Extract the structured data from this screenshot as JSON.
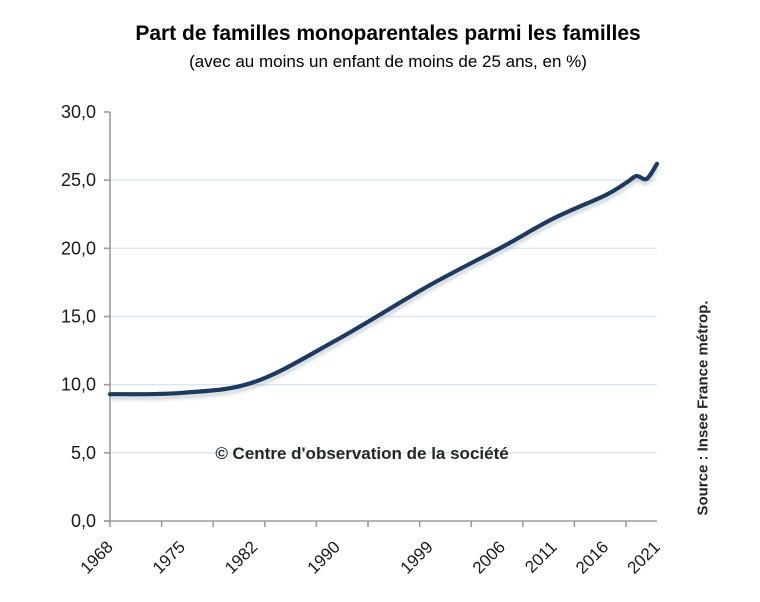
{
  "header": {
    "title": "Part de familles monoparentales parmi les familles",
    "subtitle": "(avec au moins un enfant de moins de 25 ans, en %)"
  },
  "watermark": "© Centre d'observation de la société",
  "source_label": "Source : Insee France métrop.",
  "colors": {
    "line": "#1d3a5f",
    "line_shadow": "#8d99a6",
    "gridline": "#dbe7f3",
    "axis": "#9b9b9b",
    "text": "#1a1a1a"
  },
  "chart_data": {
    "type": "line",
    "title": "Part de familles monoparentales parmi les familles",
    "subtitle": "(avec au moins un enfant de moins de 25 ans, en %)",
    "unit": "%",
    "x": [
      1968,
      1975,
      1982,
      1990,
      1999,
      2006,
      2011,
      2016,
      2018,
      2019,
      2020,
      2021
    ],
    "values": [
      9.3,
      9.4,
      10.2,
      13.3,
      17.3,
      20.1,
      22.2,
      23.9,
      24.8,
      25.3,
      25.1,
      26.2
    ],
    "series": [
      {
        "name": "Part de familles monoparentales (%)",
        "values": [
          9.3,
          9.4,
          10.2,
          13.3,
          17.3,
          20.1,
          22.2,
          23.9,
          24.8,
          25.3,
          25.1,
          26.2
        ]
      }
    ],
    "xlabel": "",
    "ylabel": "",
    "xlim": [
      1968,
      2021
    ],
    "ylim": [
      0,
      30
    ],
    "yticks": [
      0,
      5,
      10,
      15,
      20,
      25,
      30
    ],
    "ytick_labels": [
      "0,0",
      "5,0",
      "10,0",
      "15,0",
      "20,0",
      "25,0",
      "30,0"
    ],
    "ygrid": [
      5,
      10,
      15,
      20,
      25
    ],
    "xtick_marks": [
      1968,
      1973,
      1978,
      1983,
      1988,
      1993,
      1998,
      2003,
      2008,
      2013,
      2018
    ],
    "xtick_label_years": [
      1968,
      1975,
      1982,
      1990,
      1999,
      2006,
      2011,
      2016,
      2021
    ],
    "xtick_labels": [
      "1968",
      "1975",
      "1982",
      "1990",
      "1999",
      "2006",
      "2011",
      "2016",
      "2021"
    ],
    "grid": true,
    "legend_position": "none",
    "line_smoothing": true
  }
}
